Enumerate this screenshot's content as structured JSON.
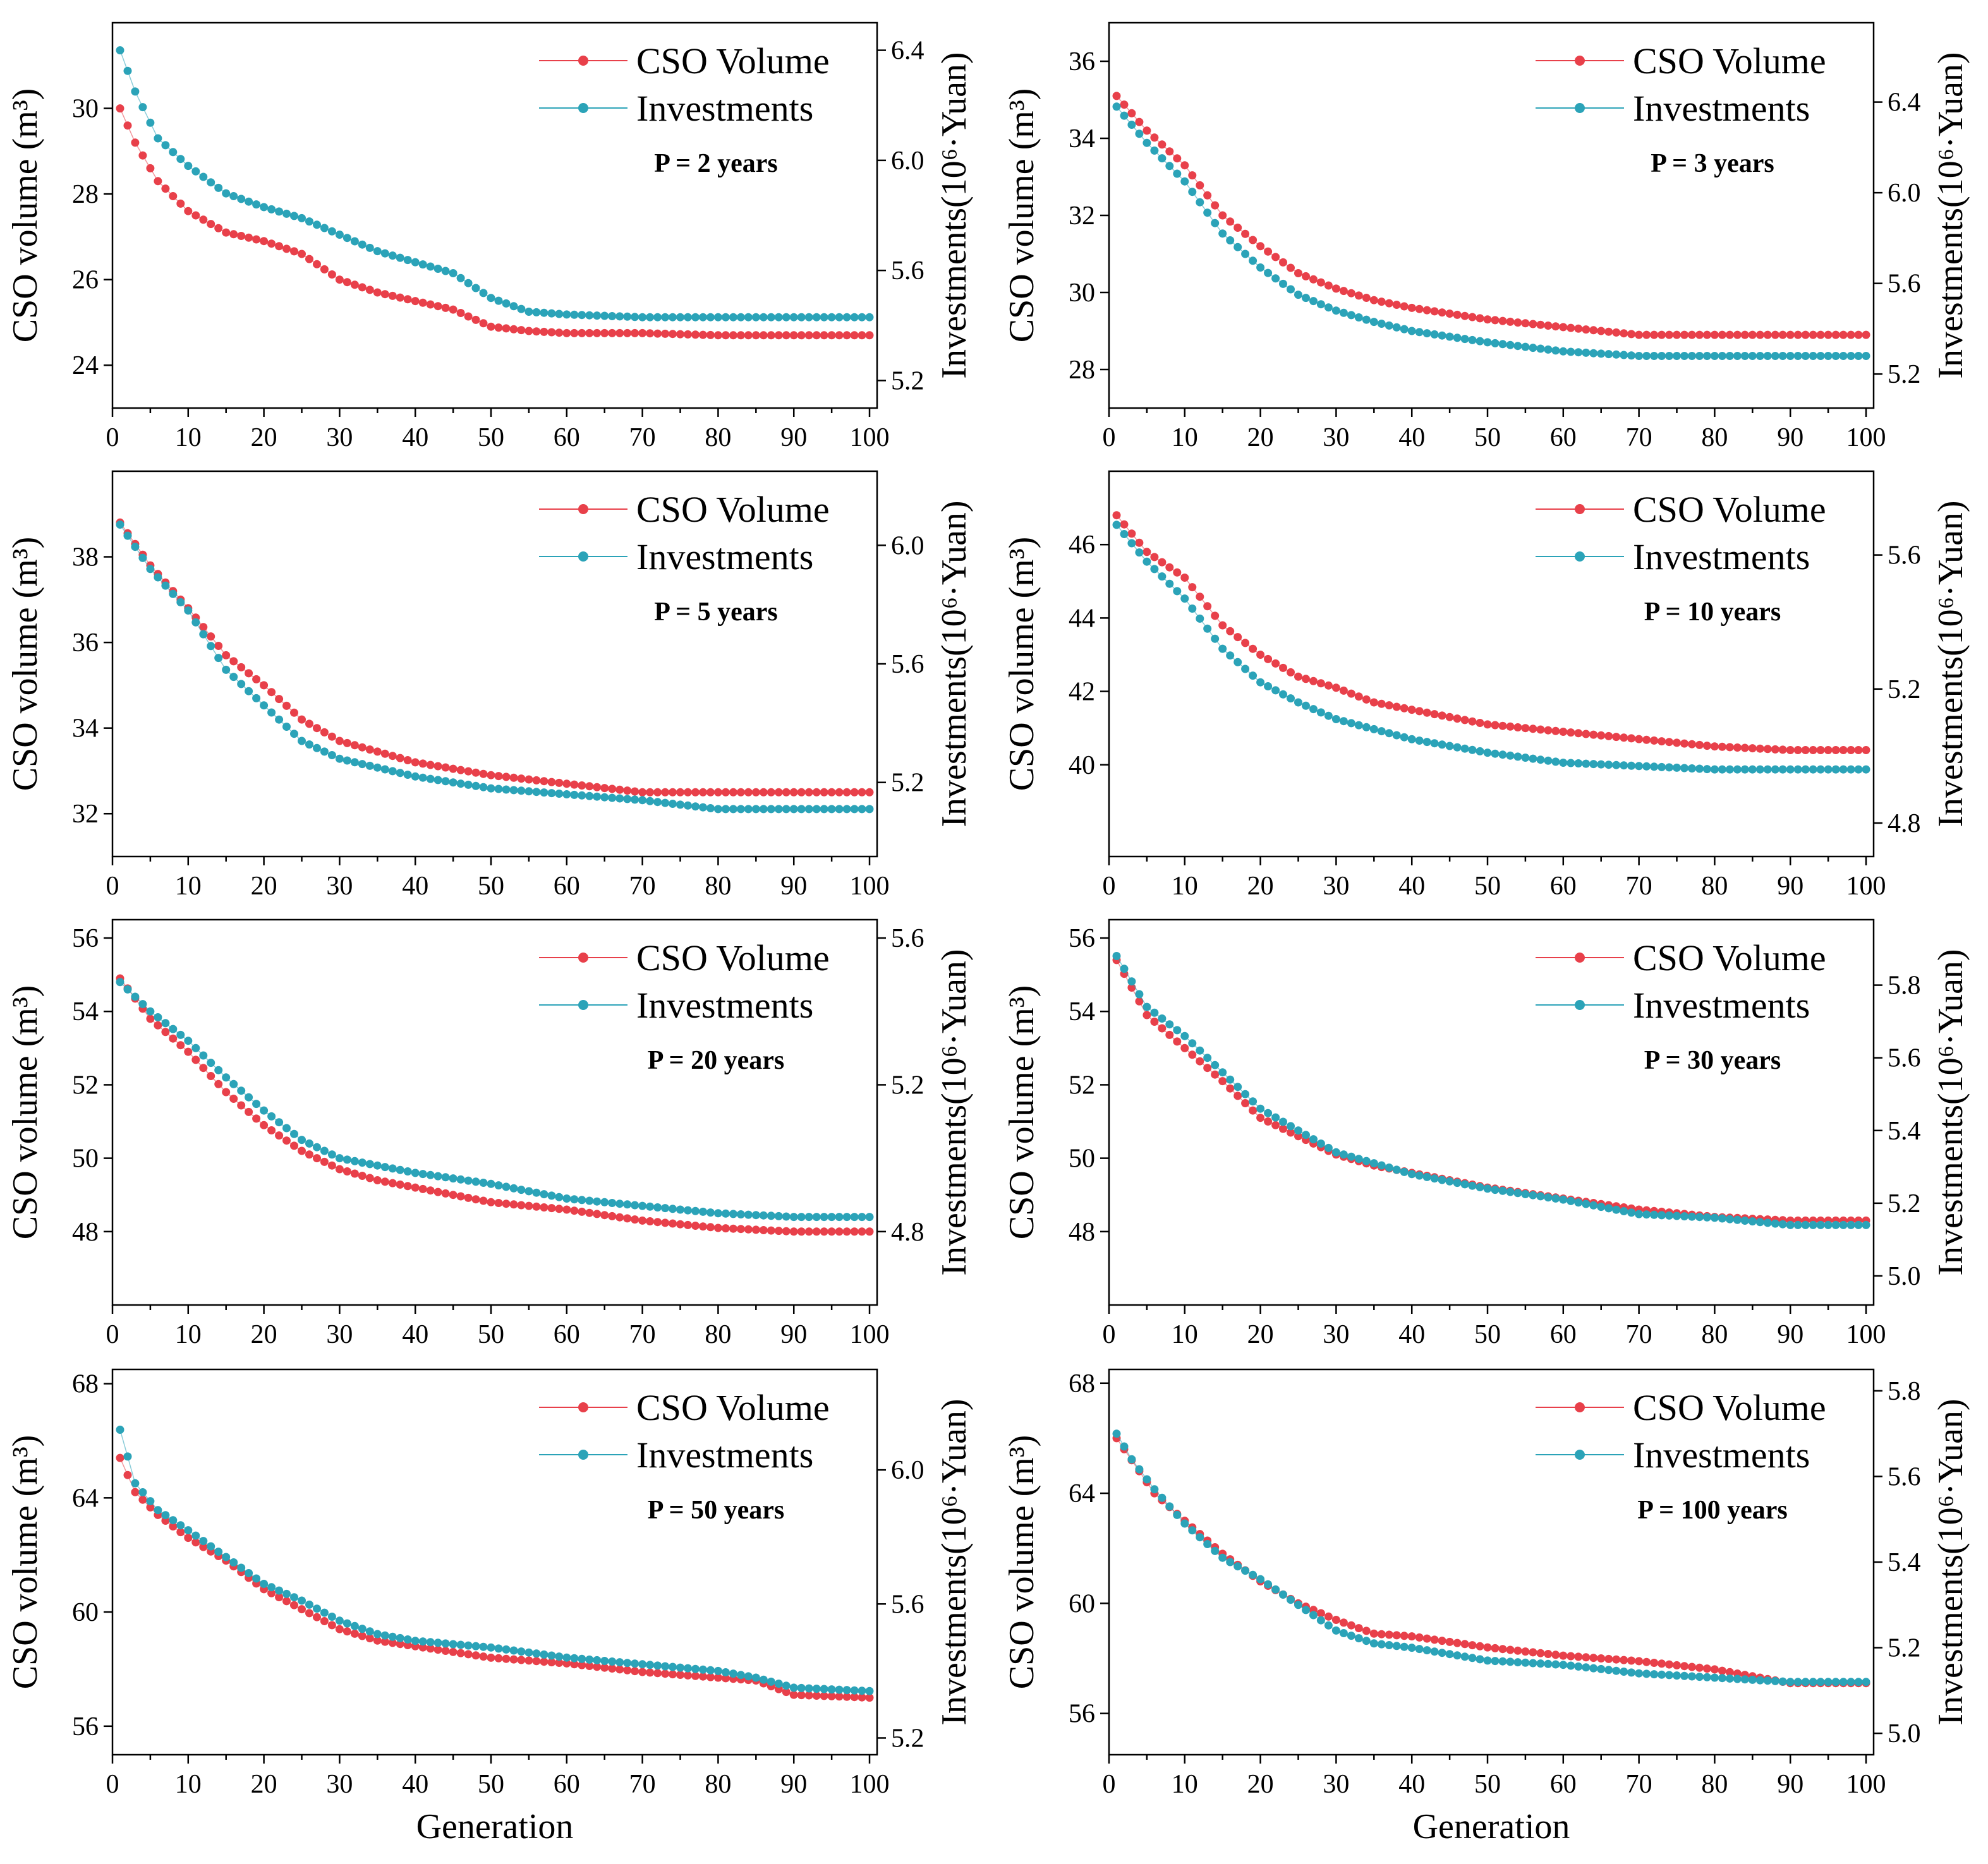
{
  "colors": {
    "cso": "#e8404a",
    "investments": "#2ba3b8",
    "axis": "#000000"
  },
  "axis_titles": {
    "left": "CSO volume (m³)",
    "right": "Investments(10⁶·Yuan)",
    "bottom": "Generation"
  },
  "chart_data": [
    {
      "type": "line",
      "title": "P = 2 years",
      "xlabel": "Generation",
      "ylabel": "CSO volume (m³)",
      "y2label": "Investments(10⁶·Yuan)",
      "xlim": [
        0,
        101
      ],
      "ylim": [
        23,
        32
      ],
      "y2lim": [
        5.1,
        6.5
      ],
      "xticks": [
        0,
        10,
        20,
        30,
        40,
        50,
        60,
        70,
        80,
        90,
        100
      ],
      "yticks": [
        24,
        26,
        28,
        30
      ],
      "y2ticks": [
        5.2,
        5.6,
        6.0,
        6.4
      ],
      "legend": [
        "CSO Volume",
        "Investments"
      ],
      "series": [
        {
          "name": "CSO Volume",
          "axis": "left",
          "generations": [
            1,
            3,
            6,
            10,
            15,
            20,
            25,
            30,
            35,
            40,
            45,
            50,
            55,
            60,
            70,
            80,
            90,
            100
          ],
          "values": [
            30.0,
            29.2,
            28.3,
            27.6,
            27.1,
            26.9,
            26.6,
            26.0,
            25.7,
            25.5,
            25.3,
            24.9,
            24.8,
            24.75,
            24.75,
            24.7,
            24.7,
            24.7
          ]
        },
        {
          "name": "Investments",
          "axis": "right",
          "generations": [
            1,
            3,
            6,
            10,
            15,
            20,
            25,
            30,
            35,
            40,
            45,
            50,
            55,
            60,
            70,
            80,
            90,
            100
          ],
          "values": [
            6.4,
            6.25,
            6.08,
            5.98,
            5.88,
            5.83,
            5.79,
            5.73,
            5.67,
            5.63,
            5.59,
            5.5,
            5.45,
            5.44,
            5.43,
            5.43,
            5.43,
            5.43
          ]
        }
      ]
    },
    {
      "type": "line",
      "title": "P = 3 years",
      "xlabel": "Generation",
      "ylabel": "CSO volume (m³)",
      "y2label": "Investments(10⁶·Yuan)",
      "xlim": [
        0,
        101
      ],
      "ylim": [
        27,
        37
      ],
      "y2lim": [
        5.05,
        6.75
      ],
      "xticks": [
        0,
        10,
        20,
        30,
        40,
        50,
        60,
        70,
        80,
        90,
        100
      ],
      "yticks": [
        28,
        30,
        32,
        34,
        36
      ],
      "y2ticks": [
        5.2,
        5.6,
        6.0,
        6.4
      ],
      "legend": [
        "CSO Volume",
        "Investments"
      ],
      "series": [
        {
          "name": "CSO Volume",
          "axis": "left",
          "generations": [
            1,
            5,
            10,
            15,
            20,
            25,
            30,
            35,
            40,
            50,
            60,
            70,
            80,
            90,
            100
          ],
          "values": [
            35.1,
            34.2,
            33.3,
            32.0,
            31.2,
            30.5,
            30.1,
            29.8,
            29.6,
            29.3,
            29.1,
            28.9,
            28.9,
            28.9,
            28.9
          ]
        },
        {
          "name": "Investments",
          "axis": "right",
          "generations": [
            1,
            5,
            10,
            15,
            20,
            25,
            30,
            35,
            40,
            50,
            60,
            70,
            80,
            90,
            100
          ],
          "values": [
            6.38,
            6.22,
            6.05,
            5.82,
            5.67,
            5.55,
            5.48,
            5.43,
            5.39,
            5.34,
            5.3,
            5.28,
            5.28,
            5.28,
            5.28
          ]
        }
      ]
    },
    {
      "type": "line",
      "title": "P = 5 years",
      "xlabel": "Generation",
      "ylabel": "CSO volume (m³)",
      "y2label": "Investments(10⁶·Yuan)",
      "xlim": [
        0,
        101
      ],
      "ylim": [
        31,
        40
      ],
      "y2lim": [
        4.95,
        6.25
      ],
      "xticks": [
        0,
        10,
        20,
        30,
        40,
        50,
        60,
        70,
        80,
        90,
        100
      ],
      "yticks": [
        32,
        34,
        36,
        38
      ],
      "y2ticks": [
        5.2,
        5.6,
        6.0
      ],
      "legend": [
        "CSO Volume",
        "Investments"
      ],
      "series": [
        {
          "name": "CSO Volume",
          "axis": "left",
          "generations": [
            1,
            5,
            10,
            15,
            20,
            25,
            30,
            40,
            50,
            60,
            70,
            80,
            90,
            100
          ],
          "values": [
            38.8,
            37.8,
            36.8,
            35.7,
            35.0,
            34.2,
            33.7,
            33.2,
            32.9,
            32.7,
            32.5,
            32.5,
            32.5,
            32.5
          ]
        },
        {
          "name": "Investments",
          "axis": "right",
          "generations": [
            1,
            5,
            10,
            15,
            20,
            25,
            30,
            40,
            50,
            60,
            70,
            80,
            90,
            100
          ],
          "values": [
            6.07,
            5.92,
            5.78,
            5.58,
            5.46,
            5.34,
            5.28,
            5.22,
            5.18,
            5.16,
            5.14,
            5.11,
            5.11,
            5.11
          ]
        }
      ]
    },
    {
      "type": "line",
      "title": "P = 10 years",
      "xlabel": "Generation",
      "ylabel": "CSO volume (m³)",
      "y2label": "Investments(10⁶·Yuan)",
      "xlim": [
        0,
        101
      ],
      "ylim": [
        37.5,
        48
      ],
      "y2lim": [
        4.7,
        5.85
      ],
      "xticks": [
        0,
        10,
        20,
        30,
        40,
        50,
        60,
        70,
        80,
        90,
        100
      ],
      "yticks": [
        40,
        42,
        44,
        46
      ],
      "y2ticks": [
        4.8,
        5.2,
        5.6
      ],
      "legend": [
        "CSO Volume",
        "Investments"
      ],
      "series": [
        {
          "name": "CSO Volume",
          "axis": "left",
          "generations": [
            1,
            5,
            10,
            15,
            20,
            25,
            30,
            35,
            40,
            50,
            60,
            70,
            80,
            90,
            100
          ],
          "values": [
            46.8,
            45.8,
            45.1,
            43.8,
            43.0,
            42.4,
            42.1,
            41.7,
            41.5,
            41.1,
            40.9,
            40.7,
            40.5,
            40.4,
            40.4
          ]
        },
        {
          "name": "Investments",
          "axis": "right",
          "generations": [
            1,
            5,
            10,
            15,
            20,
            25,
            30,
            35,
            40,
            50,
            60,
            70,
            80,
            90,
            100
          ],
          "values": [
            5.69,
            5.58,
            5.47,
            5.32,
            5.22,
            5.16,
            5.11,
            5.08,
            5.05,
            5.01,
            4.98,
            4.97,
            4.96,
            4.96,
            4.96
          ]
        }
      ]
    },
    {
      "type": "line",
      "title": "P = 20 years",
      "xlabel": "Generation",
      "ylabel": "CSO volume (m³)",
      "y2label": "Investments(10⁶·Yuan)",
      "xlim": [
        0,
        101
      ],
      "ylim": [
        46,
        56.5
      ],
      "y2lim": [
        4.6,
        5.65
      ],
      "xticks": [
        0,
        10,
        20,
        30,
        40,
        50,
        60,
        70,
        80,
        90,
        100
      ],
      "yticks": [
        48,
        50,
        52,
        54,
        56
      ],
      "y2ticks": [
        4.8,
        5.2,
        5.6
      ],
      "legend": [
        "CSO Volume",
        "Investments"
      ],
      "series": [
        {
          "name": "CSO Volume",
          "axis": "left",
          "generations": [
            1,
            5,
            10,
            15,
            20,
            25,
            30,
            35,
            40,
            50,
            60,
            70,
            80,
            90,
            100
          ],
          "values": [
            54.9,
            53.8,
            52.9,
            51.8,
            50.9,
            50.2,
            49.7,
            49.4,
            49.2,
            48.8,
            48.6,
            48.3,
            48.1,
            48.0,
            48.0
          ]
        },
        {
          "name": "Investments",
          "axis": "right",
          "generations": [
            1,
            5,
            10,
            15,
            20,
            25,
            30,
            35,
            40,
            50,
            60,
            70,
            80,
            90,
            100
          ],
          "values": [
            5.48,
            5.4,
            5.32,
            5.22,
            5.13,
            5.05,
            5.0,
            4.98,
            4.96,
            4.93,
            4.89,
            4.87,
            4.85,
            4.84,
            4.84
          ]
        }
      ]
    },
    {
      "type": "line",
      "title": "P = 30 years",
      "xlabel": "Generation",
      "ylabel": "CSO volume (m³)",
      "y2label": "Investments(10⁶·Yuan)",
      "xlim": [
        0,
        101
      ],
      "ylim": [
        46,
        56.5
      ],
      "y2lim": [
        4.92,
        5.98
      ],
      "xticks": [
        0,
        10,
        20,
        30,
        40,
        50,
        60,
        70,
        80,
        90,
        100
      ],
      "yticks": [
        48,
        50,
        52,
        54,
        56
      ],
      "y2ticks": [
        5.0,
        5.2,
        5.4,
        5.6,
        5.8
      ],
      "legend": [
        "CSO Volume",
        "Investments"
      ],
      "series": [
        {
          "name": "CSO Volume",
          "axis": "left",
          "generations": [
            1,
            5,
            10,
            15,
            20,
            25,
            30,
            35,
            40,
            50,
            60,
            70,
            80,
            90,
            100
          ],
          "values": [
            55.4,
            53.9,
            53.0,
            52.1,
            51.1,
            50.6,
            50.1,
            49.8,
            49.6,
            49.2,
            48.9,
            48.6,
            48.4,
            48.3,
            48.3
          ]
        },
        {
          "name": "Investments",
          "axis": "right",
          "generations": [
            1,
            5,
            10,
            15,
            20,
            25,
            30,
            35,
            40,
            50,
            60,
            70,
            80,
            90,
            100
          ],
          "values": [
            5.88,
            5.74,
            5.66,
            5.56,
            5.46,
            5.4,
            5.34,
            5.31,
            5.28,
            5.24,
            5.21,
            5.17,
            5.16,
            5.14,
            5.14
          ]
        }
      ]
    },
    {
      "type": "line",
      "title": "P = 50 years",
      "xlabel": "Generation",
      "ylabel": "CSO volume (m³)",
      "y2label": "Investments(10⁶·Yuan)",
      "xlim": [
        0,
        101
      ],
      "ylim": [
        55,
        68.5
      ],
      "y2lim": [
        5.15,
        6.3
      ],
      "xticks": [
        0,
        10,
        20,
        30,
        40,
        50,
        60,
        70,
        80,
        90,
        100
      ],
      "yticks": [
        56,
        60,
        64,
        68
      ],
      "y2ticks": [
        5.2,
        5.6,
        6.0
      ],
      "legend": [
        "CSO Volume",
        "Investments"
      ],
      "series": [
        {
          "name": "CSO Volume",
          "axis": "left",
          "generations": [
            1,
            3,
            6,
            10,
            15,
            20,
            25,
            30,
            35,
            40,
            50,
            60,
            70,
            80,
            85,
            90,
            100
          ],
          "values": [
            65.4,
            64.2,
            63.4,
            62.6,
            61.8,
            60.8,
            60.1,
            59.4,
            59.0,
            58.8,
            58.4,
            58.2,
            57.9,
            57.7,
            57.6,
            57.1,
            57.0
          ]
        },
        {
          "name": "Investments",
          "axis": "right",
          "generations": [
            1,
            3,
            6,
            10,
            15,
            20,
            25,
            30,
            35,
            40,
            50,
            60,
            70,
            80,
            85,
            90,
            100
          ],
          "values": [
            6.12,
            5.96,
            5.88,
            5.82,
            5.74,
            5.66,
            5.61,
            5.55,
            5.51,
            5.49,
            5.47,
            5.44,
            5.42,
            5.4,
            5.38,
            5.35,
            5.34
          ]
        }
      ]
    },
    {
      "type": "line",
      "title": "P = 100 years",
      "xlabel": "Generation",
      "ylabel": "CSO volume (m³)",
      "y2label": "Investments(10⁶·Yuan)",
      "xlim": [
        0,
        101
      ],
      "ylim": [
        54.5,
        68.5
      ],
      "y2lim": [
        4.95,
        5.85
      ],
      "xticks": [
        0,
        10,
        20,
        30,
        40,
        50,
        60,
        70,
        80,
        90,
        100
      ],
      "yticks": [
        56,
        60,
        64,
        68
      ],
      "y2ticks": [
        5.0,
        5.2,
        5.4,
        5.6,
        5.8
      ],
      "legend": [
        "CSO Volume",
        "Investments"
      ],
      "series": [
        {
          "name": "CSO Volume",
          "axis": "left",
          "generations": [
            1,
            3,
            6,
            10,
            15,
            20,
            25,
            30,
            35,
            40,
            50,
            60,
            70,
            80,
            90,
            100
          ],
          "values": [
            66.0,
            65.2,
            64.0,
            63.0,
            61.8,
            60.8,
            60.0,
            59.4,
            58.9,
            58.8,
            58.4,
            58.1,
            57.9,
            57.6,
            57.1,
            57.1
          ]
        },
        {
          "name": "Investments",
          "axis": "right",
          "generations": [
            1,
            3,
            6,
            10,
            15,
            20,
            25,
            30,
            35,
            40,
            50,
            60,
            70,
            80,
            90,
            100
          ],
          "values": [
            5.7,
            5.64,
            5.57,
            5.49,
            5.41,
            5.36,
            5.3,
            5.24,
            5.21,
            5.2,
            5.17,
            5.16,
            5.14,
            5.13,
            5.12,
            5.12
          ]
        }
      ]
    }
  ]
}
